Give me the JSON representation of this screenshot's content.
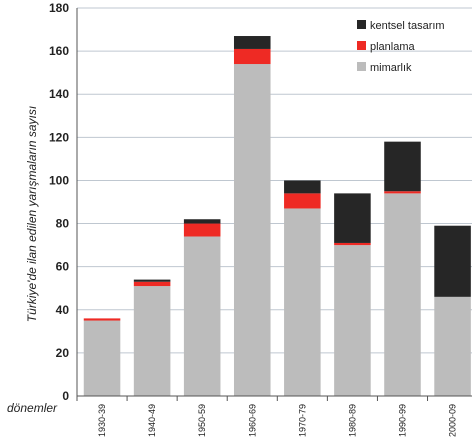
{
  "chart_data": {
    "type": "bar",
    "stacked": true,
    "categories": [
      "1930-39",
      "1940-49",
      "1950-59",
      "1960-69",
      "1970-79",
      "1980-89",
      "1990-99",
      "2000-09"
    ],
    "series": [
      {
        "name": "mimarlık",
        "color": "#bcbcbc",
        "values": [
          35,
          51,
          74,
          154,
          87,
          70,
          94,
          46
        ]
      },
      {
        "name": "planlama",
        "color": "#ee2a24",
        "values": [
          1,
          2,
          6,
          7,
          7,
          1,
          1,
          0
        ]
      },
      {
        "name": "kentsel tasarım",
        "color": "#262626",
        "values": [
          0,
          1,
          2,
          6,
          6,
          23,
          23,
          33
        ]
      }
    ],
    "ylabel": "Türkiye'de ilan edilen yarışmaların sayısı",
    "xlabel": "dönemler",
    "ylim": [
      0,
      180
    ],
    "yticks": [
      0,
      20,
      40,
      60,
      80,
      100,
      120,
      140,
      160,
      180
    ],
    "grid": true,
    "legend_position": "top-right"
  }
}
